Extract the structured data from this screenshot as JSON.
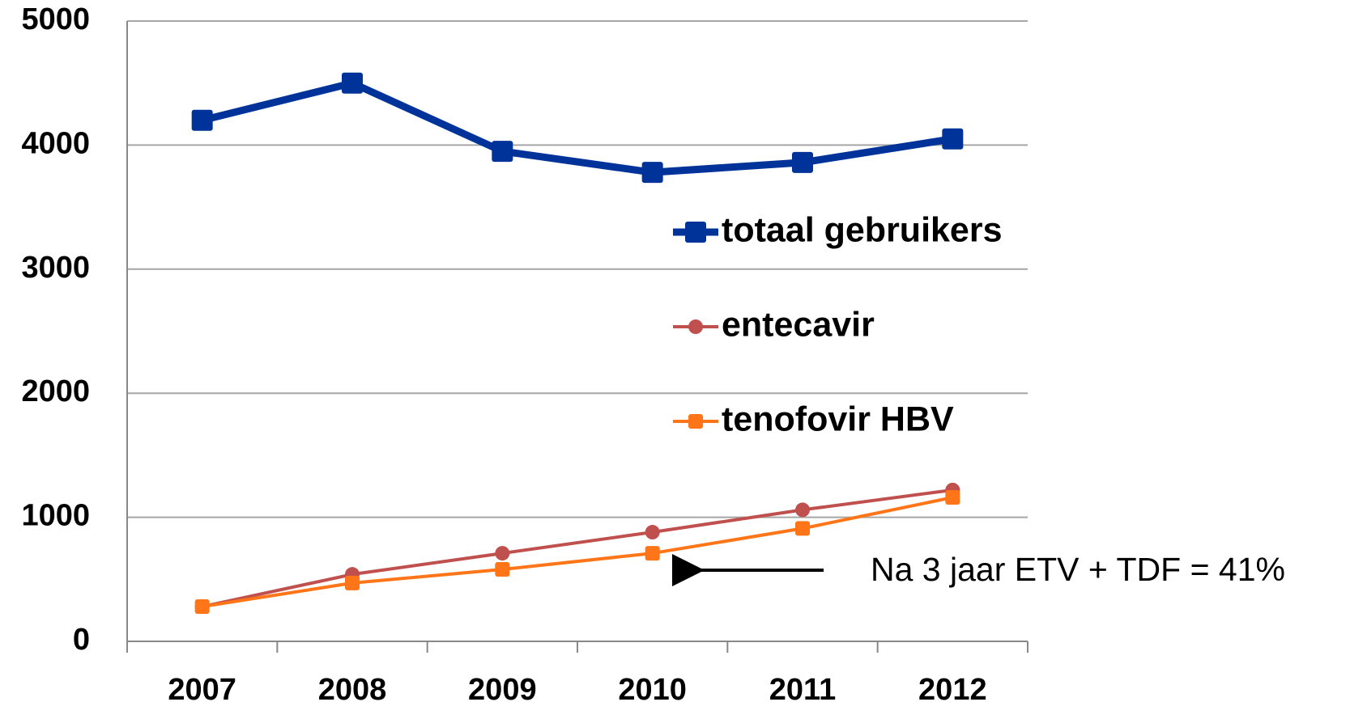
{
  "chart_data": {
    "type": "line",
    "categories": [
      "2007",
      "2008",
      "2009",
      "2010",
      "2011",
      "2012"
    ],
    "series": [
      {
        "name": "totaal gebruikers",
        "color": "#003399",
        "marker": "square",
        "values": [
          4200,
          4500,
          3950,
          3780,
          3860,
          4050
        ]
      },
      {
        "name": "entecavir",
        "color": "#c0504d",
        "marker": "circle",
        "values": [
          280,
          540,
          710,
          880,
          1060,
          1220
        ]
      },
      {
        "name": "tenofovir HBV",
        "color": "#ff7518",
        "marker": "square",
        "values": [
          280,
          470,
          580,
          710,
          910,
          1160
        ]
      }
    ],
    "ylim": [
      0,
      5000
    ],
    "yticks": [
      0,
      1000,
      2000,
      3000,
      4000,
      5000
    ],
    "grid": true,
    "legend_position": "right",
    "annotation": "Na 3 jaar ETV + TDF = 41%"
  }
}
